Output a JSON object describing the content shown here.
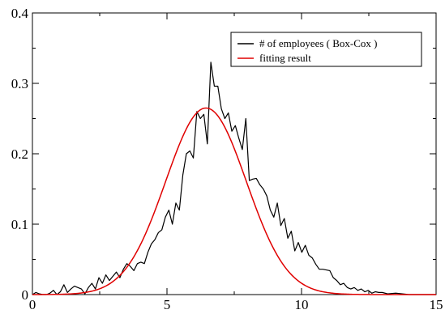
{
  "chart_data": {
    "type": "line",
    "title": "",
    "xlabel": "",
    "ylabel": "",
    "xlim": [
      0,
      15
    ],
    "ylim": [
      0,
      0.4
    ],
    "xticks": [
      "0",
      "5",
      "10",
      "15"
    ],
    "yticks": [
      "0",
      "0.1",
      "0.2",
      "0.3",
      "0.4"
    ],
    "grid": false,
    "legend_position": "top-right",
    "series": [
      {
        "name": "# of employees ( Box-Cox )",
        "color": "#000000",
        "x": [
          0.0,
          0.13,
          0.26,
          0.39,
          0.52,
          0.65,
          0.78,
          0.91,
          1.04,
          1.17,
          1.3,
          1.43,
          1.56,
          1.69,
          1.82,
          1.95,
          2.08,
          2.21,
          2.34,
          2.47,
          2.6,
          2.73,
          2.86,
          2.99,
          3.12,
          3.25,
          3.38,
          3.51,
          3.64,
          3.77,
          3.9,
          4.03,
          4.16,
          4.29,
          4.42,
          4.55,
          4.68,
          4.81,
          4.94,
          5.07,
          5.2,
          5.33,
          5.46,
          5.59,
          5.72,
          5.85,
          5.98,
          6.11,
          6.24,
          6.37,
          6.5,
          6.63,
          6.76,
          6.89,
          7.02,
          7.15,
          7.28,
          7.41,
          7.54,
          7.67,
          7.8,
          7.93,
          8.06,
          8.19,
          8.32,
          8.45,
          8.58,
          8.71,
          8.84,
          8.97,
          9.1,
          9.23,
          9.36,
          9.49,
          9.62,
          9.75,
          9.88,
          10.01,
          10.14,
          10.27,
          10.4,
          10.53,
          10.66,
          10.79,
          10.92,
          11.05,
          11.18,
          11.31,
          11.44,
          11.57,
          11.7,
          11.83,
          11.96,
          12.09,
          12.22,
          12.35,
          12.48,
          12.61,
          12.74,
          12.87,
          13.0,
          13.2,
          13.5,
          14.0,
          14.5,
          15.0
        ],
        "values": [
          0.0,
          0.003,
          0.001,
          0.0,
          0.0,
          0.002,
          0.006,
          0.0,
          0.004,
          0.014,
          0.003,
          0.008,
          0.012,
          0.01,
          0.008,
          0.001,
          0.01,
          0.016,
          0.008,
          0.024,
          0.016,
          0.028,
          0.02,
          0.026,
          0.032,
          0.024,
          0.036,
          0.044,
          0.04,
          0.034,
          0.044,
          0.046,
          0.044,
          0.06,
          0.072,
          0.078,
          0.088,
          0.092,
          0.11,
          0.12,
          0.1,
          0.13,
          0.12,
          0.17,
          0.2,
          0.204,
          0.194,
          0.26,
          0.25,
          0.256,
          0.214,
          0.33,
          0.296,
          0.296,
          0.264,
          0.25,
          0.258,
          0.232,
          0.24,
          0.222,
          0.206,
          0.25,
          0.162,
          0.164,
          0.165,
          0.156,
          0.15,
          0.14,
          0.12,
          0.11,
          0.13,
          0.098,
          0.108,
          0.08,
          0.09,
          0.062,
          0.074,
          0.06,
          0.07,
          0.056,
          0.052,
          0.043,
          0.036,
          0.036,
          0.035,
          0.034,
          0.024,
          0.02,
          0.014,
          0.016,
          0.01,
          0.008,
          0.01,
          0.006,
          0.008,
          0.004,
          0.006,
          0.002,
          0.004,
          0.003,
          0.003,
          0.001,
          0.002,
          0.0,
          0.0,
          0.0
        ]
      },
      {
        "name": "fitting result",
        "color": "#e00000",
        "fit": {
          "model": "gaussian",
          "amplitude": 0.265,
          "center": 6.45,
          "sigma": 1.5
        }
      }
    ]
  }
}
